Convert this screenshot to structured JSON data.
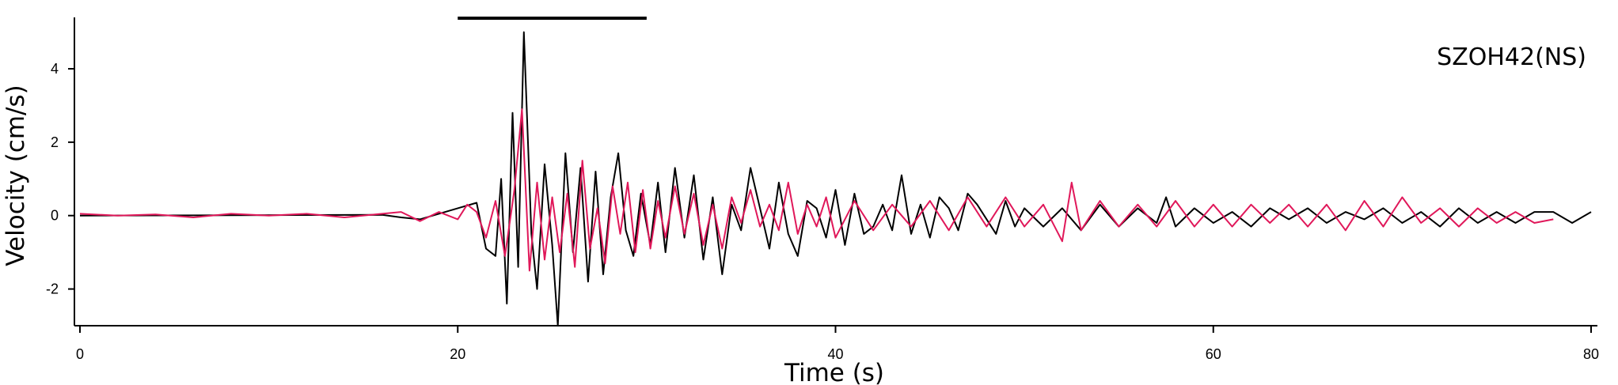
{
  "chart_data": {
    "type": "line",
    "title": "",
    "annotation": "SZOH42(NS)",
    "xlabel": "Time (s)",
    "ylabel": "Velocity (cm/s)",
    "xlim": [
      0,
      80
    ],
    "ylim": [
      -3.0,
      5.4
    ],
    "x_ticks": [
      0,
      20,
      40,
      60,
      80
    ],
    "x_tick_labels": [
      "0",
      "20",
      "40",
      "60",
      "80"
    ],
    "y_ticks": [
      -2,
      0,
      2,
      4
    ],
    "y_tick_labels": [
      "-2",
      "0",
      "2",
      "4"
    ],
    "grid": false,
    "legend": "none",
    "window_bar": {
      "x_start": 20,
      "x_end": 30
    },
    "series": [
      {
        "color": "#000000",
        "points": [
          [
            0,
            0
          ],
          [
            16,
            0.02
          ],
          [
            17,
            -0.05
          ],
          [
            18,
            -0.1
          ],
          [
            19,
            0.05
          ],
          [
            20,
            0.2
          ],
          [
            21,
            0.35
          ],
          [
            21.5,
            -0.9
          ],
          [
            22,
            -1.1
          ],
          [
            22.3,
            1.0
          ],
          [
            22.6,
            -2.4
          ],
          [
            22.9,
            2.8
          ],
          [
            23.2,
            -1.4
          ],
          [
            23.5,
            5.0
          ],
          [
            23.9,
            -0.5
          ],
          [
            24.2,
            -2.0
          ],
          [
            24.6,
            1.4
          ],
          [
            25,
            -0.8
          ],
          [
            25.3,
            -3.0
          ],
          [
            25.7,
            1.7
          ],
          [
            26.1,
            -1.0
          ],
          [
            26.5,
            1.3
          ],
          [
            26.9,
            -1.8
          ],
          [
            27.3,
            1.2
          ],
          [
            27.7,
            -1.6
          ],
          [
            28.1,
            0.5
          ],
          [
            28.5,
            1.7
          ],
          [
            28.9,
            -0.4
          ],
          [
            29.3,
            -1.1
          ],
          [
            29.7,
            0.6
          ],
          [
            30.2,
            -0.8
          ],
          [
            30.6,
            0.9
          ],
          [
            31,
            -1.0
          ],
          [
            31.5,
            1.3
          ],
          [
            32,
            -0.6
          ],
          [
            32.5,
            1.1
          ],
          [
            33,
            -1.2
          ],
          [
            33.5,
            0.5
          ],
          [
            34,
            -1.6
          ],
          [
            34.5,
            0.3
          ],
          [
            35,
            -0.4
          ],
          [
            35.5,
            1.3
          ],
          [
            36,
            0.2
          ],
          [
            36.5,
            -0.9
          ],
          [
            37,
            0.9
          ],
          [
            37.5,
            -0.5
          ],
          [
            38,
            -1.1
          ],
          [
            38.5,
            0.4
          ],
          [
            39,
            0.2
          ],
          [
            39.5,
            -0.6
          ],
          [
            40,
            0.7
          ],
          [
            40.5,
            -0.8
          ],
          [
            41,
            0.6
          ],
          [
            41.5,
            -0.5
          ],
          [
            42,
            -0.3
          ],
          [
            42.5,
            0.3
          ],
          [
            43,
            -0.4
          ],
          [
            43.5,
            1.1
          ],
          [
            44,
            -0.5
          ],
          [
            44.5,
            0.3
          ],
          [
            45,
            -0.6
          ],
          [
            45.5,
            0.5
          ],
          [
            46,
            0.2
          ],
          [
            46.5,
            -0.4
          ],
          [
            47,
            0.6
          ],
          [
            47.5,
            0.3
          ],
          [
            48,
            -0.1
          ],
          [
            48.5,
            -0.5
          ],
          [
            49,
            0.4
          ],
          [
            49.5,
            -0.3
          ],
          [
            50,
            0.2
          ],
          [
            51,
            -0.3
          ],
          [
            52,
            0.2
          ],
          [
            53,
            -0.4
          ],
          [
            54,
            0.3
          ],
          [
            55,
            -0.3
          ],
          [
            56,
            0.2
          ],
          [
            57,
            -0.2
          ],
          [
            57.5,
            0.5
          ],
          [
            58,
            -0.3
          ],
          [
            59,
            0.2
          ],
          [
            60,
            -0.2
          ],
          [
            61,
            0.1
          ],
          [
            62,
            -0.3
          ],
          [
            63,
            0.2
          ],
          [
            64,
            -0.1
          ],
          [
            65,
            0.2
          ],
          [
            66,
            -0.2
          ],
          [
            67,
            0.1
          ],
          [
            68,
            -0.1
          ],
          [
            69,
            0.2
          ],
          [
            70,
            -0.2
          ],
          [
            71,
            0.1
          ],
          [
            72,
            -0.3
          ],
          [
            73,
            0.2
          ],
          [
            74,
            -0.2
          ],
          [
            75,
            0.1
          ],
          [
            76,
            -0.2
          ],
          [
            77,
            0.1
          ],
          [
            78,
            0.1
          ],
          [
            79,
            -0.2
          ],
          [
            80,
            0.1
          ]
        ]
      },
      {
        "color": "#e0185a",
        "points": [
          [
            0,
            0.05
          ],
          [
            2,
            0.0
          ],
          [
            4,
            0.03
          ],
          [
            6,
            -0.05
          ],
          [
            8,
            0.05
          ],
          [
            10,
            0.0
          ],
          [
            12,
            0.05
          ],
          [
            14,
            -0.05
          ],
          [
            16,
            0.05
          ],
          [
            17,
            0.1
          ],
          [
            18,
            -0.15
          ],
          [
            19,
            0.1
          ],
          [
            20,
            -0.1
          ],
          [
            20.5,
            0.3
          ],
          [
            21,
            0.1
          ],
          [
            21.5,
            -0.6
          ],
          [
            22,
            0.4
          ],
          [
            22.5,
            -1.1
          ],
          [
            23,
            0.7
          ],
          [
            23.4,
            2.9
          ],
          [
            23.8,
            -1.5
          ],
          [
            24.2,
            0.9
          ],
          [
            24.6,
            -1.2
          ],
          [
            25,
            0.5
          ],
          [
            25.4,
            -1.0
          ],
          [
            25.8,
            0.6
          ],
          [
            26.2,
            -1.4
          ],
          [
            26.6,
            1.5
          ],
          [
            27,
            -0.9
          ],
          [
            27.4,
            0.2
          ],
          [
            27.8,
            -1.3
          ],
          [
            28.2,
            0.8
          ],
          [
            28.6,
            -0.5
          ],
          [
            29,
            0.9
          ],
          [
            29.4,
            -1.0
          ],
          [
            29.8,
            0.7
          ],
          [
            30.2,
            -0.9
          ],
          [
            30.6,
            0.4
          ],
          [
            31,
            -0.6
          ],
          [
            31.5,
            0.8
          ],
          [
            32,
            -0.5
          ],
          [
            32.5,
            0.6
          ],
          [
            33,
            -0.8
          ],
          [
            33.5,
            0.3
          ],
          [
            34,
            -0.9
          ],
          [
            34.5,
            0.5
          ],
          [
            35,
            -0.2
          ],
          [
            35.5,
            0.7
          ],
          [
            36,
            -0.3
          ],
          [
            36.5,
            0.3
          ],
          [
            37,
            -0.4
          ],
          [
            37.5,
            0.9
          ],
          [
            38,
            -0.5
          ],
          [
            38.5,
            0.3
          ],
          [
            39,
            -0.3
          ],
          [
            39.5,
            0.5
          ],
          [
            40,
            -0.6
          ],
          [
            41,
            0.4
          ],
          [
            42,
            -0.4
          ],
          [
            43,
            0.3
          ],
          [
            44,
            -0.3
          ],
          [
            45,
            0.4
          ],
          [
            46,
            -0.4
          ],
          [
            47,
            0.5
          ],
          [
            48,
            -0.3
          ],
          [
            49,
            0.5
          ],
          [
            50,
            -0.3
          ],
          [
            51,
            0.3
          ],
          [
            52,
            -0.7
          ],
          [
            52.5,
            0.9
          ],
          [
            53,
            -0.4
          ],
          [
            54,
            0.4
          ],
          [
            55,
            -0.3
          ],
          [
            56,
            0.3
          ],
          [
            57,
            -0.3
          ],
          [
            58,
            0.4
          ],
          [
            59,
            -0.3
          ],
          [
            60,
            0.3
          ],
          [
            61,
            -0.3
          ],
          [
            62,
            0.3
          ],
          [
            63,
            -0.2
          ],
          [
            64,
            0.3
          ],
          [
            65,
            -0.3
          ],
          [
            66,
            0.3
          ],
          [
            67,
            -0.4
          ],
          [
            68,
            0.4
          ],
          [
            69,
            -0.3
          ],
          [
            70,
            0.5
          ],
          [
            71,
            -0.2
          ],
          [
            72,
            0.2
          ],
          [
            73,
            -0.3
          ],
          [
            74,
            0.2
          ],
          [
            75,
            -0.2
          ],
          [
            76,
            0.1
          ],
          [
            77,
            -0.2
          ],
          [
            78,
            -0.1
          ]
        ]
      }
    ]
  }
}
